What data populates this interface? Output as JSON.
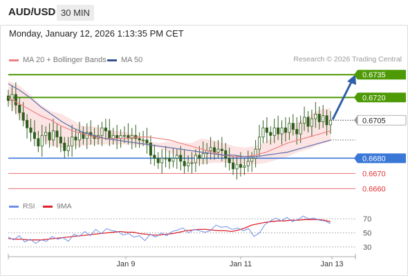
{
  "header": {
    "symbol": "AUD/USD",
    "timeframe": "30 MIN"
  },
  "datetime": "Monday, January 12, 2026 1:13:35 PM CET",
  "legend": {
    "ma20_label": "MA 20 + Bollinger Bands",
    "ma50_label": "MA 50",
    "credit": "Research © 2026 Trading Central"
  },
  "colors": {
    "ma20": "#f08080",
    "bollinger_fill": "#fde4e4",
    "ma50": "#5a6fa8",
    "candle": "#2e5e1e",
    "resistance": "#4d9a06",
    "pivot": "#3a78d8",
    "support": "#e8494f",
    "arrow": "#2f5fa8",
    "rsi": "#6b8fe6",
    "rsi_ma": "#e0202a"
  },
  "chart_data": {
    "type": "candlestick",
    "instrument": "AUD/USD",
    "x_ticks": [
      "Jan 9",
      "Jan 11",
      "Jan 13"
    ],
    "ylim": [
      0.6657,
      0.6741
    ],
    "levels": [
      {
        "label": "0.6735",
        "value": 0.6735,
        "kind": "resistance"
      },
      {
        "label": "0.6720",
        "value": 0.672,
        "kind": "resistance"
      },
      {
        "label": "0.6705",
        "value": 0.6705,
        "kind": "current"
      },
      {
        "label": "0.6680",
        "value": 0.668,
        "kind": "pivot"
      },
      {
        "label": "0.6670",
        "value": 0.667,
        "kind": "support"
      },
      {
        "label": "0.6660",
        "value": 0.666,
        "kind": "support"
      }
    ],
    "series": [
      {
        "name": "AUD/USD",
        "close": [
          0.6718,
          0.6722,
          0.6715,
          0.671,
          0.6705,
          0.67,
          0.6697,
          0.6693,
          0.6688,
          0.6695,
          0.6697,
          0.6692,
          0.6698,
          0.6694,
          0.669,
          0.6685,
          0.6688,
          0.6694,
          0.6692,
          0.6697,
          0.6693,
          0.6697,
          0.6695,
          0.6693,
          0.6695,
          0.67,
          0.6698,
          0.6693,
          0.6695,
          0.6693,
          0.6695,
          0.6695,
          0.6693,
          0.6695,
          0.6693,
          0.6692,
          0.6692,
          0.669,
          0.6682,
          0.668,
          0.6677,
          0.668,
          0.668,
          0.6678,
          0.668,
          0.6682,
          0.6678,
          0.6675,
          0.6677,
          0.6677,
          0.6682,
          0.668,
          0.6683,
          0.6685,
          0.6687,
          0.6684,
          0.6686,
          0.6685,
          0.668,
          0.6677,
          0.6673,
          0.6676,
          0.6674,
          0.6675,
          0.6678,
          0.668,
          0.6686,
          0.6694,
          0.67,
          0.6697,
          0.6695,
          0.67,
          0.6696,
          0.67,
          0.6697,
          0.6703,
          0.6699,
          0.6696,
          0.6703,
          0.6707,
          0.6701,
          0.6706,
          0.6709,
          0.6704,
          0.6708,
          0.6702,
          0.6705
        ]
      },
      {
        "name": "MA 20",
        "values": [
          0.672,
          0.6716,
          0.6712,
          0.6708,
          0.6705,
          0.6701,
          0.6698,
          0.6696,
          0.6694,
          0.6693,
          0.6693,
          0.6693,
          0.6694,
          0.6694,
          0.6693,
          0.6692,
          0.669,
          0.6688,
          0.6686,
          0.6684,
          0.6682,
          0.6681,
          0.6681,
          0.6682,
          0.6684,
          0.6687,
          0.669,
          0.6692,
          0.6694,
          0.6696,
          0.6698
        ]
      },
      {
        "name": "MA 50",
        "values": [
          0.6729,
          0.6725,
          0.672,
          0.6714,
          0.6709,
          0.6704,
          0.67,
          0.6697,
          0.6695,
          0.6693,
          0.6692,
          0.6691,
          0.669,
          0.6689,
          0.6688,
          0.6687,
          0.6686,
          0.6685,
          0.6684,
          0.6683,
          0.6682,
          0.6682,
          0.6681,
          0.6681,
          0.6682,
          0.6683,
          0.6684,
          0.6686,
          0.6688,
          0.669,
          0.6692
        ]
      },
      {
        "name": "BB upper",
        "values": [
          0.6731,
          0.6728,
          0.6722,
          0.6715,
          0.6711,
          0.6709,
          0.6705,
          0.6701,
          0.6701,
          0.6699,
          0.6698,
          0.6697,
          0.6695,
          0.6691,
          0.669,
          0.6691,
          0.669,
          0.669,
          0.6693,
          0.6692,
          0.669,
          0.6688,
          0.6687,
          0.6688,
          0.6691,
          0.6696,
          0.67,
          0.6704,
          0.6708,
          0.6712,
          0.6713
        ]
      },
      {
        "name": "BB lower",
        "values": [
          0.6717,
          0.6707,
          0.6699,
          0.6693,
          0.6688,
          0.6687,
          0.6688,
          0.6688,
          0.6689,
          0.6689,
          0.6689,
          0.6689,
          0.6689,
          0.6688,
          0.6687,
          0.6684,
          0.668,
          0.6677,
          0.6676,
          0.6677,
          0.6677,
          0.6677,
          0.6676,
          0.6676,
          0.6677,
          0.6679,
          0.6681,
          0.6684,
          0.6686,
          0.6689,
          0.6691
        ]
      }
    ],
    "rsi": {
      "legend": [
        "RSI",
        "9MA"
      ],
      "ylim": [
        20,
        80
      ],
      "ticks": [
        "70",
        "50",
        "30"
      ],
      "rsi_values": [
        44,
        40,
        46,
        37,
        41,
        35,
        40,
        38,
        45,
        41,
        43,
        38,
        48,
        45,
        52,
        46,
        55,
        49,
        56,
        53,
        52,
        47,
        49,
        44,
        46,
        39,
        48,
        44,
        50,
        46,
        52,
        54,
        57,
        50,
        55,
        53,
        51,
        53,
        61,
        58,
        59,
        55,
        57,
        53,
        56,
        45,
        50,
        62,
        67,
        71,
        67,
        72,
        66,
        69,
        74,
        70,
        71,
        68,
        67,
        63
      ],
      "ma_values": [
        42,
        41,
        41,
        40,
        40,
        40,
        41,
        42,
        43,
        44,
        45,
        46,
        47,
        48,
        49,
        50,
        51,
        52,
        51,
        51,
        49,
        48,
        47,
        47,
        48,
        49,
        51,
        53,
        54,
        55,
        55,
        54,
        53,
        53,
        52,
        54,
        57,
        61,
        63,
        65,
        66,
        67,
        67,
        68,
        68,
        69,
        69,
        69,
        68,
        66
      ]
    }
  }
}
